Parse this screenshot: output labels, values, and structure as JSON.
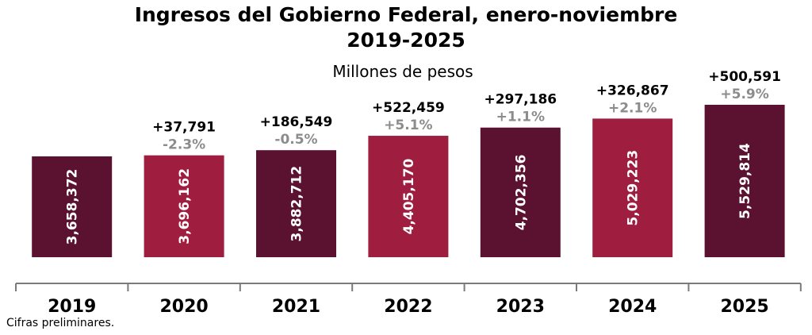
{
  "chart_data": {
    "type": "bar",
    "title": "Ingresos del Gobierno Federal, enero-noviembre",
    "title_line2": "2019-2025",
    "subtitle": "Millones de pesos",
    "categories": [
      "2019",
      "2020",
      "2021",
      "2022",
      "2023",
      "2024",
      "2025"
    ],
    "values": [
      3658372,
      3696162,
      3882712,
      4405170,
      4702356,
      5029223,
      5529814
    ],
    "value_labels": [
      "3,658,372",
      "3,696,162",
      "3,882,712",
      "4,405,170",
      "4,702,356",
      "5,029,223",
      "5,529,814"
    ],
    "abs_change_labels": [
      "",
      "+37,791",
      "+186,549",
      "+522,459",
      "+297,186",
      "+326,867",
      "+500,591"
    ],
    "pct_change_labels": [
      "",
      "-2.3%",
      "-0.5%",
      "+5.1%",
      "+1.1%",
      "+2.1%",
      "+5.9%"
    ],
    "bar_colors": [
      "#5a1230",
      "#9f1e3f",
      "#5a1230",
      "#9f1e3f",
      "#5a1230",
      "#9f1e3f",
      "#5a1230"
    ],
    "pct_color": "#8c8c8c",
    "ylim": [
      0,
      5529814
    ],
    "grid": false,
    "legend": "none",
    "footnote": "Cifras preliminares."
  }
}
